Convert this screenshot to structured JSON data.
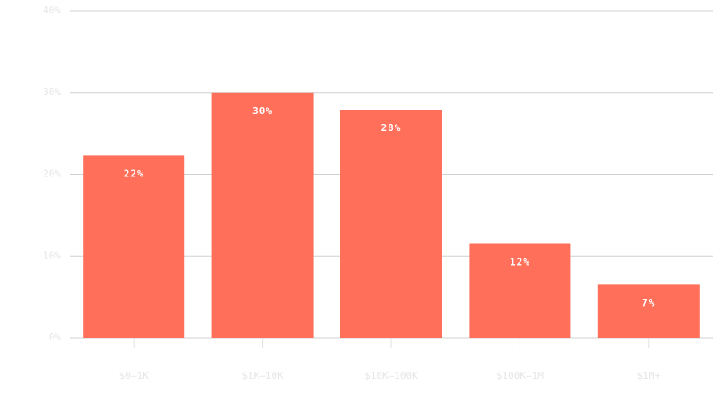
{
  "chart_data": {
    "type": "bar",
    "categories": [
      "$0–1K",
      "$1K–10K",
      "$10K–100K",
      "$100K–1M",
      "$1M+"
    ],
    "values": [
      22.3,
      30,
      27.9,
      11.5,
      6.5
    ],
    "value_labels": [
      "22%",
      "30%",
      "28%",
      "12%",
      "7%"
    ],
    "color": "#ff6f59",
    "ylim": [
      0,
      40
    ],
    "yticks": [
      {
        "value": 0,
        "label": "0%"
      },
      {
        "value": 10,
        "label": "10%"
      },
      {
        "value": 20,
        "label": "20%"
      },
      {
        "value": 30,
        "label": "30%"
      },
      {
        "value": 40,
        "label": "40%"
      }
    ],
    "grid": true
  }
}
